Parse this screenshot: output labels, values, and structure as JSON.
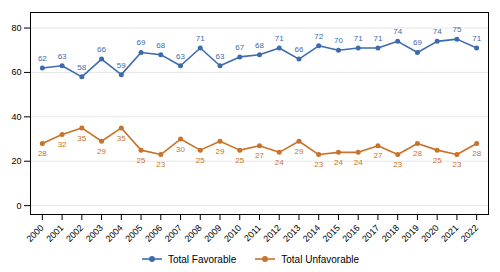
{
  "chart_data": {
    "type": "line",
    "x": [
      2000,
      2001,
      2002,
      2003,
      2004,
      2005,
      2006,
      2007,
      2008,
      2009,
      2010,
      2011,
      2012,
      2013,
      2014,
      2015,
      2016,
      2017,
      2018,
      2019,
      2020,
      2021,
      2022
    ],
    "series": [
      {
        "name": "Total Favorable",
        "color": "#3D6BAD",
        "values": [
          62,
          63,
          58,
          66,
          59,
          69,
          68,
          63,
          71,
          63,
          67,
          68,
          71,
          66,
          72,
          70,
          71,
          71,
          74,
          69,
          74,
          75,
          71
        ]
      },
      {
        "name": "Total Unfavorable",
        "color": "#C8722A",
        "values": [
          28,
          32,
          35,
          29,
          35,
          25,
          23,
          30,
          25,
          29,
          25,
          27,
          24,
          29,
          23,
          24,
          24,
          27,
          23,
          28,
          25,
          23,
          28
        ]
      }
    ],
    "xlim": [
      1999.4,
      2022.6
    ],
    "xticks": [
      2000,
      2001,
      2002,
      2003,
      2004,
      2005,
      2006,
      2007,
      2008,
      2009,
      2010,
      2011,
      2012,
      2013,
      2014,
      2015,
      2016,
      2017,
      2018,
      2019,
      2020,
      2021,
      2022
    ],
    "ylim": [
      -4,
      87
    ],
    "yticks": [
      0,
      20,
      40,
      60,
      80
    ],
    "grid": true,
    "legend": "bottom",
    "data_labels": true,
    "marker": "circle"
  }
}
